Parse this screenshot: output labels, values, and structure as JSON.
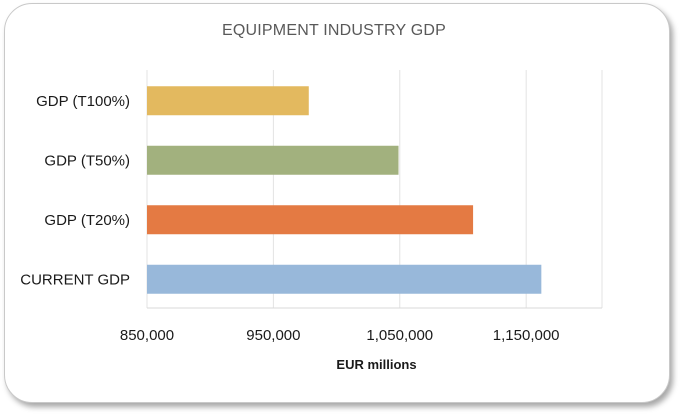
{
  "chart_data": {
    "type": "bar",
    "orientation": "horizontal",
    "title": "EQUIPMENT INDUSTRY GDP",
    "xlabel": "EUR millions",
    "ylabel": "",
    "xlim": [
      850000,
      1210000
    ],
    "xticks": [
      850000,
      950000,
      1050000,
      1150000
    ],
    "xtick_labels": [
      "850,000",
      "950,000",
      "1,050,000",
      "1,150,000"
    ],
    "grid": true,
    "categories": [
      "GDP (T100%)",
      "GDP (T50%)",
      "GDP (T20%)",
      "CURRENT GDP"
    ],
    "values": [
      978000,
      1049000,
      1108000,
      1162000
    ],
    "colors": [
      "#E3B95F",
      "#A2B17E",
      "#E47A43",
      "#98B8DA"
    ]
  }
}
